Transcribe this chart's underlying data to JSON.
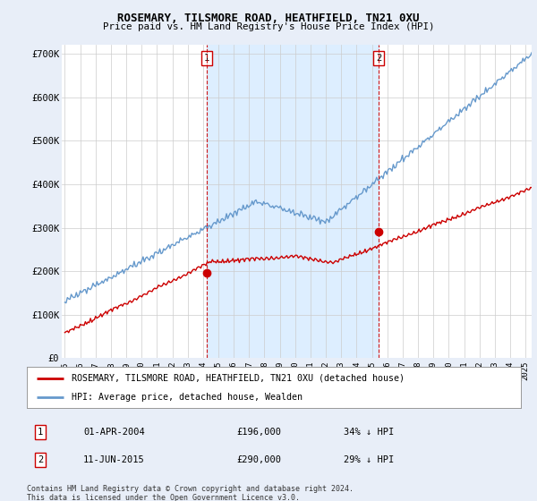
{
  "title": "ROSEMARY, TILSMORE ROAD, HEATHFIELD, TN21 0XU",
  "subtitle": "Price paid vs. HM Land Registry's House Price Index (HPI)",
  "ylim": [
    0,
    720000
  ],
  "xlim_start": 1994.8,
  "xlim_end": 2025.4,
  "yticks": [
    0,
    100000,
    200000,
    300000,
    400000,
    500000,
    600000,
    700000
  ],
  "ytick_labels": [
    "£0",
    "£100K",
    "£200K",
    "£300K",
    "£400K",
    "£500K",
    "£600K",
    "£700K"
  ],
  "xticks": [
    1995,
    1996,
    1997,
    1998,
    1999,
    2000,
    2001,
    2002,
    2003,
    2004,
    2005,
    2006,
    2007,
    2008,
    2009,
    2010,
    2011,
    2012,
    2013,
    2014,
    2015,
    2016,
    2017,
    2018,
    2019,
    2020,
    2021,
    2022,
    2023,
    2024,
    2025
  ],
  "red_line_color": "#cc0000",
  "blue_line_color": "#6699cc",
  "shade_color": "#ddeeff",
  "marker1_x": 2004.25,
  "marker1_y": 196000,
  "marker2_x": 2015.44,
  "marker2_y": 290000,
  "legend_entry1": "ROSEMARY, TILSMORE ROAD, HEATHFIELD, TN21 0XU (detached house)",
  "legend_entry2": "HPI: Average price, detached house, Wealden",
  "table_row1_num": "1",
  "table_row1_date": "01-APR-2004",
  "table_row1_price": "£196,000",
  "table_row1_hpi": "34% ↓ HPI",
  "table_row2_num": "2",
  "table_row2_date": "11-JUN-2015",
  "table_row2_price": "£290,000",
  "table_row2_hpi": "29% ↓ HPI",
  "footer": "Contains HM Land Registry data © Crown copyright and database right 2024.\nThis data is licensed under the Open Government Licence v3.0.",
  "background_color": "#e8eef8",
  "plot_bg_color": "#ffffff",
  "grid_color": "#cccccc"
}
